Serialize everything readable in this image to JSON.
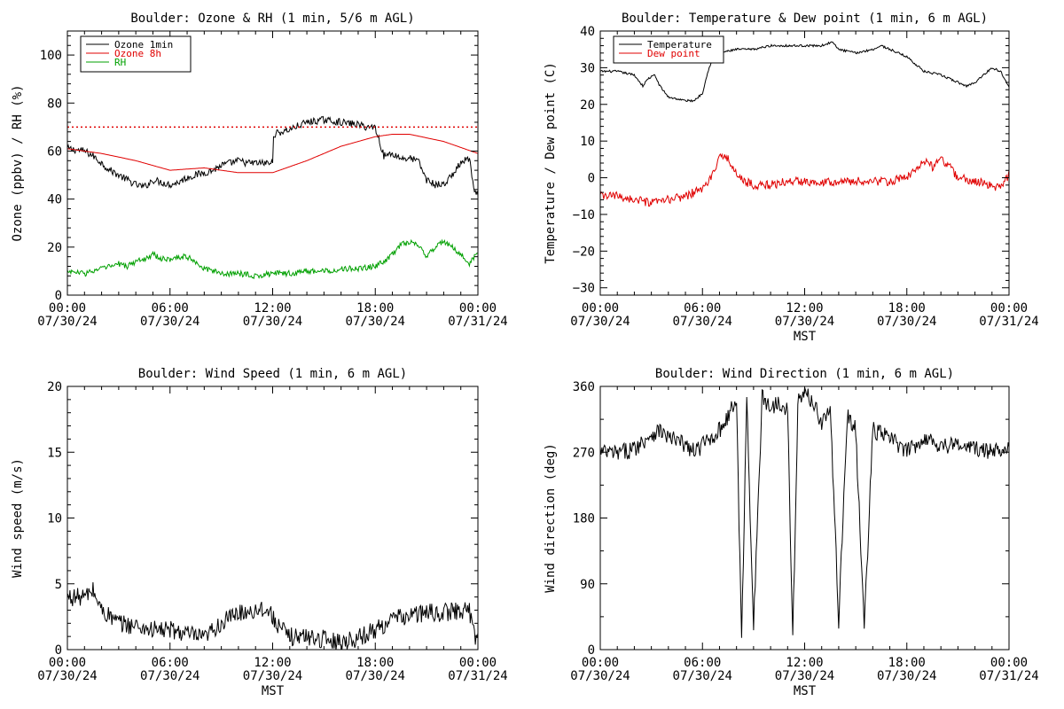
{
  "figure_colors": {
    "background": "#ffffff",
    "axes": "#000000"
  },
  "chart_data": [
    {
      "id": "ozone",
      "type": "line",
      "title": "Boulder: Ozone & RH (1 min, 5/6 m AGL)",
      "xlabel": "",
      "ylabel": "Ozone (ppbv) / RH (%)",
      "xlim": [
        0,
        24
      ],
      "ylim": [
        0,
        110
      ],
      "xticks": [
        0,
        6,
        12,
        18,
        24
      ],
      "xtick_labels": [
        [
          "00:00",
          "07/30/24"
        ],
        [
          "06:00",
          "07/30/24"
        ],
        [
          "12:00",
          "07/30/24"
        ],
        [
          "18:00",
          "07/30/24"
        ],
        [
          "00:00",
          "07/31/24"
        ]
      ],
      "yticks": [
        0,
        20,
        40,
        60,
        80,
        100
      ],
      "ytick_labels": [
        "0",
        "20",
        "40",
        "60",
        "80",
        "100"
      ],
      "legend": {
        "placement": "top-left"
      },
      "series": [
        {
          "name": "Ozone 1min",
          "color": "#000000",
          "noise": 1.5,
          "x": [
            0,
            1,
            1.5,
            2,
            2.5,
            3,
            3.5,
            4,
            4.5,
            5,
            5.5,
            6,
            6.5,
            7,
            7.5,
            8,
            8.5,
            9,
            9.5,
            10,
            10.5,
            11,
            11.5,
            12,
            12.05,
            13,
            14,
            15,
            16,
            17,
            17.5,
            18,
            18.5,
            19,
            19.5,
            20,
            20.5,
            21,
            21.5,
            22,
            22.5,
            23,
            23.5,
            23.8,
            24
          ],
          "y": [
            61,
            60,
            58,
            55,
            52,
            50,
            48,
            46,
            45,
            48,
            47,
            46,
            47,
            49,
            50,
            51,
            52,
            54,
            55,
            56,
            55,
            55,
            55,
            55,
            67,
            69,
            72,
            73,
            72,
            71,
            70,
            70,
            58,
            59,
            57,
            57,
            56,
            48,
            46,
            46,
            50,
            55,
            57,
            42,
            42
          ]
        },
        {
          "name": "Ozone 8h",
          "color": "#e00000",
          "noise": 0,
          "x": [
            0,
            2,
            4,
            6,
            8,
            10,
            12,
            14,
            16,
            18,
            19,
            20,
            22,
            24
          ],
          "y": [
            61,
            59,
            56,
            52,
            53,
            51,
            51,
            56,
            62,
            66,
            67,
            67,
            64,
            59
          ]
        },
        {
          "name": "RH",
          "color": "#00a000",
          "noise": 1.2,
          "x": [
            0,
            1,
            2,
            2.5,
            3,
            3.5,
            4,
            4.5,
            5,
            5.5,
            6,
            6.5,
            7,
            7.5,
            8,
            9,
            10,
            11,
            12,
            13,
            14,
            15,
            16,
            17,
            18,
            18.5,
            19,
            19.5,
            20,
            20.5,
            21,
            21.5,
            22,
            22.5,
            23,
            23.5,
            24
          ],
          "y": [
            10,
            9,
            11,
            12,
            13,
            12,
            14,
            15,
            17,
            15,
            15,
            16,
            16,
            14,
            11,
            9,
            9,
            8,
            9,
            9,
            10,
            10,
            11,
            11,
            12,
            14,
            17,
            21,
            22,
            21,
            16,
            20,
            22,
            20,
            17,
            13,
            18
          ]
        }
      ],
      "reference_lines": [
        {
          "y": 70,
          "color": "#e00000",
          "style": "dotted"
        }
      ]
    },
    {
      "id": "temperature",
      "type": "line",
      "title": "Boulder: Temperature & Dew point (1 min, 6 m AGL)",
      "xlabel": "MST",
      "ylabel": "Temperature / Dew point (C)",
      "xlim": [
        0,
        24
      ],
      "ylim": [
        -32,
        40
      ],
      "xticks": [
        0,
        6,
        12,
        18,
        24
      ],
      "xtick_labels": [
        [
          "00:00",
          "07/30/24"
        ],
        [
          "06:00",
          "07/30/24"
        ],
        [
          "12:00",
          "07/30/24"
        ],
        [
          "18:00",
          "07/30/24"
        ],
        [
          "00:00",
          "07/31/24"
        ]
      ],
      "yticks": [
        -30,
        -20,
        -10,
        0,
        10,
        20,
        30,
        40
      ],
      "ytick_labels": [
        "−30",
        "−20",
        "−10",
        "0",
        "10",
        "20",
        "30",
        "40"
      ],
      "legend": {
        "placement": "top-left"
      },
      "series": [
        {
          "name": "Temperature",
          "color": "#000000",
          "noise": 0.3,
          "x": [
            0,
            1,
            2,
            2.5,
            2.8,
            3.2,
            3.5,
            4,
            5,
            5.5,
            6,
            6.2,
            6.6,
            7,
            8,
            9,
            10,
            11,
            12,
            13,
            13.6,
            14,
            15,
            16,
            16.5,
            17,
            18,
            19,
            20,
            21,
            21.5,
            22,
            22.5,
            23,
            23.5,
            24
          ],
          "y": [
            29,
            29,
            28,
            25,
            27,
            28,
            25,
            22,
            21,
            21,
            23,
            27,
            33,
            34,
            35,
            35,
            36,
            36,
            36,
            36,
            37,
            35,
            34,
            35,
            36,
            35,
            33,
            29,
            28,
            26,
            25,
            26,
            28,
            30,
            29,
            25
          ]
        },
        {
          "name": "Dew point",
          "color": "#e00000",
          "noise": 1.2,
          "x": [
            0,
            1,
            2,
            3,
            4,
            5,
            6,
            6.5,
            7,
            7.3,
            7.8,
            8.5,
            9,
            10,
            11,
            12,
            13,
            14,
            15,
            16,
            17,
            18,
            18.5,
            19,
            19.5,
            20,
            20.5,
            21,
            22,
            23,
            23.5,
            24
          ],
          "y": [
            -5,
            -5,
            -6,
            -7,
            -6,
            -5,
            -3,
            0,
            5,
            7,
            2,
            -1,
            -2,
            -2,
            -1,
            -1,
            -1,
            -1,
            -1,
            -1,
            -1,
            0,
            2,
            5,
            3,
            5,
            3,
            0,
            -1,
            -2,
            -3,
            1
          ]
        }
      ]
    },
    {
      "id": "wind_speed",
      "type": "line",
      "title": "Boulder: Wind Speed (1 min, 6 m AGL)",
      "xlabel": "MST",
      "ylabel": "Wind speed (m/s)",
      "xlim": [
        0,
        24
      ],
      "ylim": [
        0,
        20
      ],
      "xticks": [
        0,
        6,
        12,
        18,
        24
      ],
      "xtick_labels": [
        [
          "00:00",
          "07/30/24"
        ],
        [
          "06:00",
          "07/30/24"
        ],
        [
          "12:00",
          "07/30/24"
        ],
        [
          "18:00",
          "07/30/24"
        ],
        [
          "00:00",
          "07/31/24"
        ]
      ],
      "yticks": [
        0,
        5,
        10,
        15,
        20
      ],
      "ytick_labels": [
        "0",
        "5",
        "10",
        "15",
        "20"
      ],
      "series": [
        {
          "name": "",
          "color": "#000000",
          "noise": 0.7,
          "x": [
            0,
            1,
            1.5,
            2,
            2.5,
            3,
            4,
            5,
            6,
            7,
            8,
            8.5,
            9,
            10,
            11,
            11.5,
            12,
            12.5,
            13,
            14,
            15,
            16,
            17,
            18,
            19,
            20,
            21,
            22,
            23,
            23.5,
            23.8,
            24
          ],
          "y": [
            4,
            4,
            4.5,
            3,
            2.5,
            2,
            1.8,
            1.5,
            1.5,
            1.2,
            0.8,
            1.5,
            2,
            2.8,
            3,
            3.2,
            2.5,
            1.5,
            1,
            1,
            0.8,
            0.6,
            0.9,
            1.5,
            2.3,
            2.6,
            2.8,
            2.8,
            3,
            3,
            1,
            1
          ]
        }
      ]
    },
    {
      "id": "wind_direction",
      "type": "line",
      "title": "Boulder: Wind Direction (1 min, 6 m AGL)",
      "xlabel": "MST",
      "ylabel": "Wind direction (deg)",
      "xlim": [
        0,
        24
      ],
      "ylim": [
        0,
        360
      ],
      "xticks": [
        0,
        6,
        12,
        18,
        24
      ],
      "xtick_labels": [
        [
          "00:00",
          "07/30/24"
        ],
        [
          "06:00",
          "07/30/24"
        ],
        [
          "12:00",
          "07/30/24"
        ],
        [
          "18:00",
          "07/30/24"
        ],
        [
          "00:00",
          "07/31/24"
        ]
      ],
      "yticks": [
        0,
        90,
        180,
        270,
        360
      ],
      "ytick_labels": [
        "0",
        "90",
        "180",
        "270",
        "360"
      ],
      "series": [
        {
          "name": "",
          "color": "#000000",
          "noise": 12,
          "x": [
            0,
            1,
            2,
            3,
            3.5,
            4,
            5,
            5.5,
            6,
            7,
            7.5,
            8,
            8.3,
            8.6,
            9,
            9.5,
            10,
            10.5,
            11,
            11.3,
            11.6,
            12,
            12.5,
            13,
            13.5,
            14,
            14.5,
            15,
            15.5,
            16,
            17,
            18,
            19,
            20,
            21,
            22,
            23,
            23.5,
            24
          ],
          "y": [
            270,
            268,
            275,
            295,
            300,
            290,
            280,
            270,
            280,
            300,
            320,
            340,
            10,
            350,
            30,
            345,
            330,
            340,
            330,
            10,
            340,
            350,
            340,
            310,
            330,
            40,
            320,
            300,
            30,
            300,
            290,
            270,
            290,
            280,
            280,
            275,
            270,
            275,
            280
          ]
        }
      ]
    }
  ]
}
